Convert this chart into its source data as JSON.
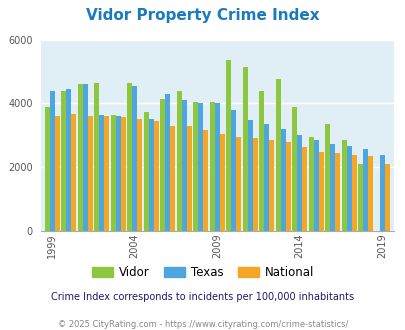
{
  "title": "Vidor Property Crime Index",
  "subtitle": "Crime Index corresponds to incidents per 100,000 inhabitants",
  "footer": "© 2025 CityRating.com - https://www.cityrating.com/crime-statistics/",
  "years": [
    1999,
    2000,
    2001,
    2002,
    2003,
    2004,
    2005,
    2006,
    2007,
    2008,
    2009,
    2010,
    2011,
    2012,
    2013,
    2014,
    2015,
    2016,
    2017,
    2018,
    2019
  ],
  "vidor": [
    3900,
    4400,
    4600,
    4650,
    3650,
    4650,
    3720,
    4150,
    4400,
    4050,
    4050,
    5350,
    5150,
    4400,
    4750,
    3900,
    2950,
    3350,
    2850,
    2100,
    0
  ],
  "texas": [
    4380,
    4450,
    4600,
    3650,
    3610,
    4550,
    3520,
    4300,
    4100,
    4000,
    4000,
    3800,
    3480,
    3350,
    3200,
    3000,
    2850,
    2720,
    2680,
    2560,
    2380
  ],
  "national": [
    3620,
    3680,
    3620,
    3610,
    3570,
    3510,
    3450,
    3300,
    3280,
    3180,
    3050,
    2960,
    2900,
    2860,
    2800,
    2640,
    2480,
    2440,
    2380,
    2340,
    2110
  ],
  "bar_colors": {
    "vidor": "#8dc63f",
    "texas": "#4da6e0",
    "national": "#f5a623"
  },
  "ylim": [
    0,
    6000
  ],
  "yticks": [
    0,
    2000,
    4000,
    6000
  ],
  "xlabel_ticks": [
    1999,
    2004,
    2009,
    2014,
    2019
  ],
  "bg_color": "#e0eff5",
  "title_color": "#1a7abf",
  "subtitle_color": "#1a1a6e",
  "footer_color": "#888888",
  "grid_color": "#ffffff"
}
